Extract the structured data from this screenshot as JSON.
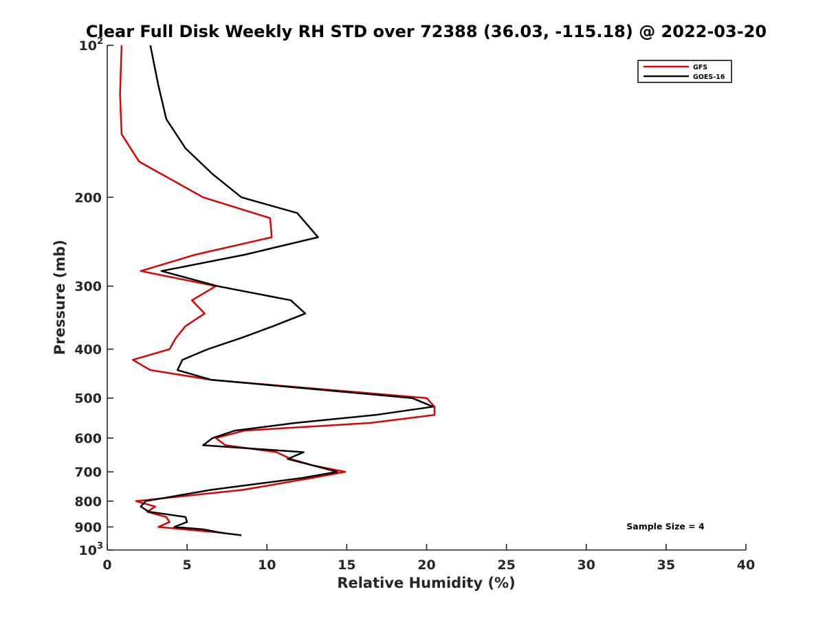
{
  "chart_data": {
    "type": "line",
    "title": "Clear Full Disk Weekly RH STD over 72388 (36.03, -115.18) @ 2022-03-20",
    "xlabel": "Relative Humidity (%)",
    "ylabel": "Pressure (mb)",
    "xlim": [
      0,
      40
    ],
    "ylim": [
      100,
      1000
    ],
    "yscale": "log",
    "y_reversed": true,
    "xticks": [
      "0",
      "5",
      "10",
      "15",
      "20",
      "25",
      "30",
      "35",
      "40"
    ],
    "yticks": [
      {
        "value": 100,
        "base": "10",
        "exp": "2"
      },
      {
        "value": 200,
        "label": "200"
      },
      {
        "value": 300,
        "label": "300"
      },
      {
        "value": 400,
        "label": "400"
      },
      {
        "value": 500,
        "label": "500"
      },
      {
        "value": 600,
        "label": "600"
      },
      {
        "value": 700,
        "label": "700"
      },
      {
        "value": 800,
        "label": "800"
      },
      {
        "value": 900,
        "label": "900"
      },
      {
        "value": 1000,
        "base": "10",
        "exp": "3"
      }
    ],
    "grid": false,
    "legend_position": "top-right",
    "series": [
      {
        "name": "GFS",
        "color": "#e00000",
        "points": [
          [
            0.9,
            100
          ],
          [
            0.8,
            125
          ],
          [
            0.9,
            150
          ],
          [
            2.0,
            170
          ],
          [
            6.0,
            200
          ],
          [
            10.2,
            220
          ],
          [
            10.3,
            240
          ],
          [
            5.5,
            260
          ],
          [
            2.1,
            280
          ],
          [
            6.8,
            300
          ],
          [
            5.3,
            320
          ],
          [
            6.1,
            340
          ],
          [
            4.9,
            360
          ],
          [
            4.3,
            380
          ],
          [
            3.9,
            400
          ],
          [
            1.6,
            420
          ],
          [
            2.7,
            440
          ],
          [
            6.5,
            460
          ],
          [
            20.0,
            500
          ],
          [
            20.5,
            520
          ],
          [
            20.5,
            540
          ],
          [
            16.5,
            560
          ],
          [
            8.6,
            580
          ],
          [
            6.8,
            600
          ],
          [
            7.4,
            620
          ],
          [
            10.6,
            640
          ],
          [
            11.5,
            660
          ],
          [
            12.9,
            680
          ],
          [
            14.9,
            700
          ],
          [
            12.8,
            720
          ],
          [
            8.5,
            760
          ],
          [
            1.8,
            800
          ],
          [
            3.0,
            820
          ],
          [
            2.5,
            840
          ],
          [
            3.7,
            860
          ],
          [
            3.9,
            880
          ],
          [
            3.2,
            900
          ],
          [
            7.3,
            925
          ]
        ]
      },
      {
        "name": "GOES-16",
        "color": "#000000",
        "points": [
          [
            2.7,
            100
          ],
          [
            3.2,
            120
          ],
          [
            3.7,
            140
          ],
          [
            4.9,
            160
          ],
          [
            6.6,
            180
          ],
          [
            8.4,
            200
          ],
          [
            11.9,
            215
          ],
          [
            13.2,
            240
          ],
          [
            8.6,
            260
          ],
          [
            3.4,
            280
          ],
          [
            6.9,
            300
          ],
          [
            11.5,
            320
          ],
          [
            12.4,
            340
          ],
          [
            10.4,
            360
          ],
          [
            8.4,
            380
          ],
          [
            6.3,
            400
          ],
          [
            4.7,
            420
          ],
          [
            4.4,
            440
          ],
          [
            6.5,
            460
          ],
          [
            19.1,
            500
          ],
          [
            20.4,
            520
          ],
          [
            16.8,
            540
          ],
          [
            11.8,
            560
          ],
          [
            8.0,
            580
          ],
          [
            6.6,
            600
          ],
          [
            6.0,
            620
          ],
          [
            12.3,
            640
          ],
          [
            11.3,
            660
          ],
          [
            12.9,
            680
          ],
          [
            14.4,
            700
          ],
          [
            12.2,
            720
          ],
          [
            6.5,
            760
          ],
          [
            2.4,
            800
          ],
          [
            2.1,
            820
          ],
          [
            2.6,
            840
          ],
          [
            4.9,
            860
          ],
          [
            5.0,
            880
          ],
          [
            4.2,
            900
          ],
          [
            6.0,
            910
          ],
          [
            7.2,
            925
          ],
          [
            8.4,
            935
          ]
        ]
      }
    ],
    "annotation": "Sample Size = 4"
  }
}
